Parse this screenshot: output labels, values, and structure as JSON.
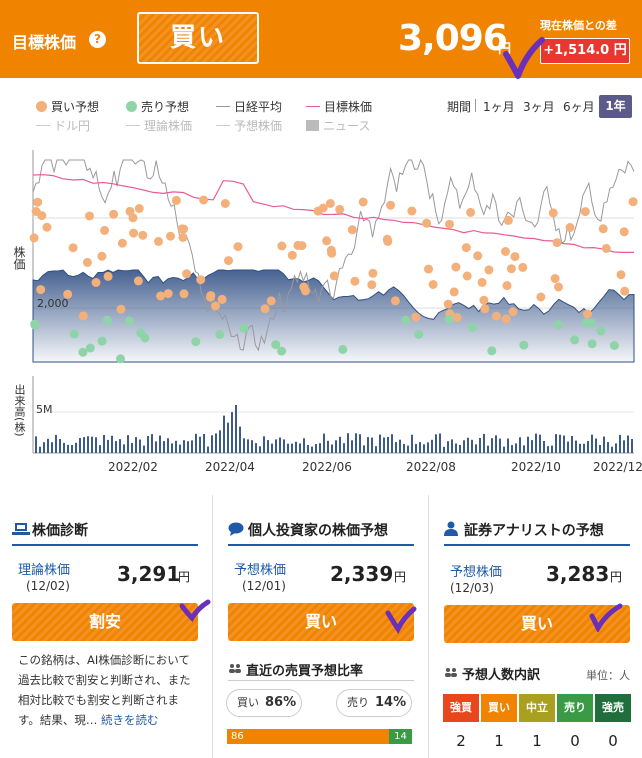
{
  "header": {
    "title": "目標株価",
    "rating": "買い",
    "price": "3,096",
    "yen": "円",
    "diff_label": "現在株価との差",
    "diff": "+1,514.0 円"
  },
  "legend": {
    "buy": "買い予想",
    "sell": "売り予想",
    "nikkei": "日経平均",
    "target": "目標株価",
    "usd": "ドル円",
    "theory": "理論株価",
    "forecast": "予想株価",
    "news": "ニュース"
  },
  "period": {
    "label": "期間",
    "m1": "1ヶ月",
    "m3": "3ヶ月",
    "m6": "6ヶ月",
    "y1": "1年"
  },
  "chart": {
    "ylabel_price": "株価",
    "ytick_price": "2,000",
    "ylabel_volume": "出来高(株)",
    "ytick_volume": "5M",
    "xticks": [
      "2022/02",
      "2022/04",
      "2022/06",
      "2022/08",
      "2022/10",
      "2022/12"
    ]
  },
  "diagnosis": {
    "title": "株価診断",
    "label": "理論株価",
    "date": "(12/02)",
    "value": "3,291",
    "yen": "円",
    "button": "割安",
    "desc": "この銘柄は、AI株価診断において過去比較で割安と判断され、また相対比較でも割安と判断されます。結果、現",
    "readmore": "続きを読む"
  },
  "individual": {
    "title": "個人投資家の株価予想",
    "label": "予想株価",
    "date": "(12/01)",
    "value": "2,339",
    "yen": "円",
    "button": "買い",
    "ratio_title": "直近の売買予想比率",
    "buy_label": "買い",
    "buy_pct": "86%",
    "sell_label": "売り",
    "sell_pct": "14%",
    "bar_buy": "86",
    "bar_sell": "14"
  },
  "analyst": {
    "title": "証券アナリストの予想",
    "label": "予想株価",
    "date": "(12/03)",
    "value": "3,283",
    "yen": "円",
    "button": "買い",
    "count_title": "予想人数内訳",
    "unit": "単位：人",
    "counts": [
      {
        "label": "強買",
        "value": "2",
        "color": "#e8471e"
      },
      {
        "label": "買い",
        "value": "1",
        "color": "#f08300"
      },
      {
        "label": "中立",
        "value": "1",
        "color": "#a8a01e"
      },
      {
        "label": "売り",
        "value": "0",
        "color": "#3a9a46"
      },
      {
        "label": "強売",
        "value": "0",
        "color": "#1f6e3b"
      }
    ]
  }
}
